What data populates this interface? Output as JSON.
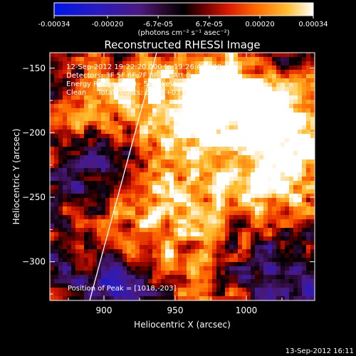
{
  "chart_data": {
    "type": "heatmap",
    "title": "Reconstructed RHESSI Image",
    "xlabel": "Heliocentric X (arcsec)",
    "ylabel": "Heliocentric Y (arcsec)",
    "xlim": [
      862,
      1048
    ],
    "ylim": [
      -330,
      -138
    ],
    "xticks": [
      900,
      950,
      1000
    ],
    "yticks": [
      -150,
      -200,
      -250,
      -300
    ],
    "colorbar": {
      "ticks": [
        "-0.00034",
        "-0.00020",
        "-6.7e-05",
        "6.7e-05",
        "0.00020",
        "0.00034"
      ],
      "tick_values": [
        -0.00034,
        -0.0002,
        -6.7e-05,
        6.7e-05,
        0.0002,
        0.00034
      ],
      "range": [
        -0.00034,
        0.00034
      ],
      "units": "(photons cm⁻² s⁻¹ asec⁻²)",
      "colormap": "rhessi-diverging"
    },
    "annotations": [
      "12-Sep-2012 19:22:20.000 to 19:26:42.000",
      "Detectors: 3F 5F 6F 7F 8F 9F, Att 0",
      "Energy Range: 25.0 - 50.0 keV",
      "Clean     Total counts: 6.39E+03"
    ],
    "peak_label": "Position of Peak = [1018,-203]",
    "peak_position": [
      1018,
      -203
    ],
    "limb_line": [
      [
        890,
        -330
      ],
      [
        937,
        -138
      ]
    ],
    "grid": false,
    "legend": "none"
  },
  "footer": {
    "timestamp": "13-Sep-2012 16:11"
  }
}
